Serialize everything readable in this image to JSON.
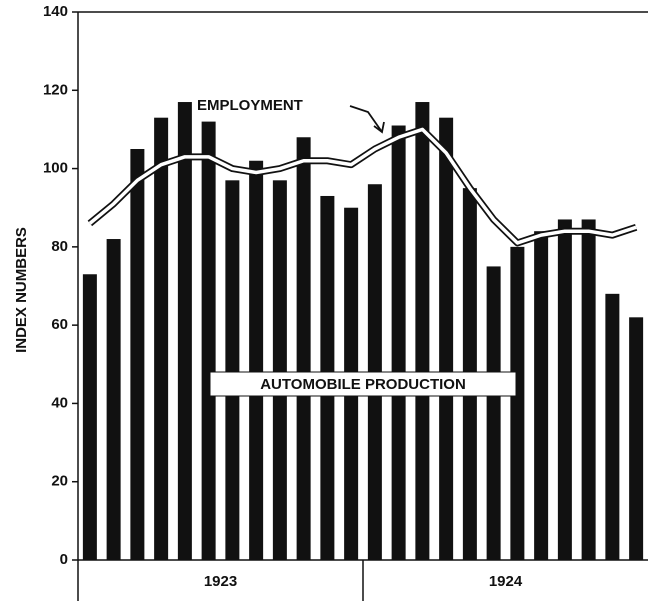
{
  "chart_data": {
    "type": "bar",
    "ylabel": "INDEX NUMBERS",
    "categories": [
      null,
      null,
      null,
      null,
      null,
      null,
      null,
      null,
      null,
      null,
      null,
      null,
      null,
      null,
      null,
      null,
      null,
      null,
      null,
      null,
      null,
      null,
      null,
      null
    ],
    "x_groups": [
      "1923",
      "1924"
    ],
    "series": [
      {
        "name": "AUTOMOBILE PRODUCTION",
        "type": "bar",
        "color": "#111111",
        "values": [
          73,
          82,
          105,
          113,
          117,
          112,
          97,
          102,
          97,
          108,
          93,
          90,
          96,
          111,
          117,
          113,
          95,
          75,
          80,
          84,
          87,
          87,
          68,
          62
        ]
      },
      {
        "name": "EMPLOYMENT",
        "type": "line",
        "color": "#ffffff",
        "values": [
          86,
          91,
          97,
          101,
          103,
          103,
          100,
          99,
          100,
          102,
          102,
          101,
          105,
          108,
          110,
          104,
          95,
          87,
          81,
          83,
          84,
          84,
          83,
          85
        ]
      }
    ],
    "ylim": [
      0,
      140
    ],
    "yticks": [
      0,
      20,
      40,
      60,
      80,
      100,
      120,
      140
    ]
  }
}
